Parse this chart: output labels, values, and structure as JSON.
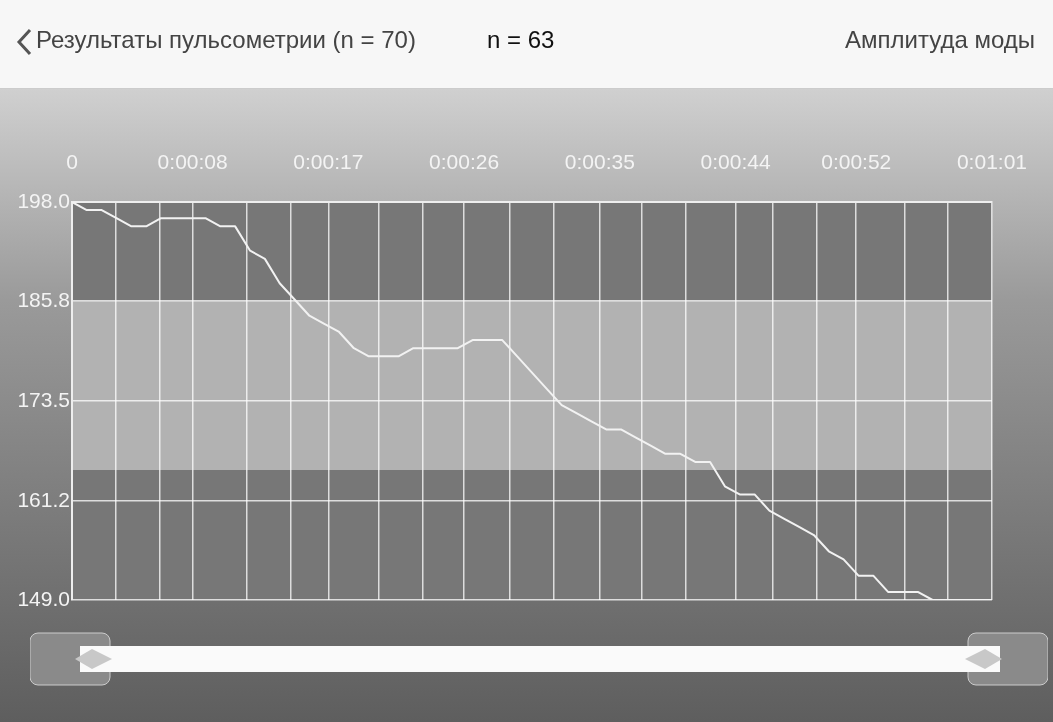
{
  "chart_data": {
    "type": "line",
    "title": "Результаты пульсометрии (n = 70)",
    "subtitle": "n = 63",
    "annotations": [
      "Амплитуда моды"
    ],
    "x": [
      0,
      0.98,
      1.97,
      2.95,
      3.94,
      4.92,
      5.9,
      6.89,
      7.87,
      8.85,
      9.84,
      10.82,
      11.81,
      12.79,
      13.77,
      14.76,
      15.74,
      16.73,
      17.71,
      18.69,
      19.68,
      20.66,
      21.65,
      22.63,
      23.61,
      24.6,
      25.58,
      26.56,
      27.55,
      28.53,
      29.52,
      30.5,
      31.48,
      32.47,
      33.45,
      34.44,
      35.42,
      36.4,
      37.39,
      38.37,
      39.35,
      40.34,
      41.32,
      42.31,
      43.29,
      44.27,
      45.26,
      46.24,
      47.23,
      48.21,
      49.19,
      50.18,
      51.16,
      52.15,
      53.13,
      54.11,
      55.1,
      56.08,
      57.06,
      58.05,
      59.03,
      60.02,
      61
    ],
    "series": [
      {
        "color": "#f2f2f2",
        "values": [
          198,
          197,
          197,
          196,
          195,
          195,
          196,
          196,
          196,
          196,
          195,
          195,
          192,
          191,
          188,
          186,
          184,
          183,
          182,
          180,
          179,
          179,
          179,
          180,
          180,
          180,
          180,
          181,
          181,
          181,
          179,
          177,
          175,
          173,
          172,
          171,
          170,
          170,
          169,
          168,
          167,
          167,
          166,
          166,
          163,
          162,
          162,
          160,
          159,
          158,
          157,
          155,
          154,
          152,
          152,
          150,
          150,
          150,
          149,
          149,
          149,
          149,
          149
        ]
      }
    ],
    "xlim": [
      0,
      61
    ],
    "xticks": [
      {
        "value": 0,
        "label": "0"
      },
      {
        "value": 2.9,
        "label": null
      },
      {
        "value": 5.81,
        "label": null
      },
      {
        "value": 8,
        "label": "0:00:08"
      },
      {
        "value": 11.62,
        "label": null
      },
      {
        "value": 14.52,
        "label": null
      },
      {
        "value": 17,
        "label": "0:00:17"
      },
      {
        "value": 20.33,
        "label": null
      },
      {
        "value": 23.24,
        "label": null
      },
      {
        "value": 26,
        "label": "0:00:26"
      },
      {
        "value": 29.05,
        "label": null
      },
      {
        "value": 31.95,
        "label": null
      },
      {
        "value": 35,
        "label": "0:00:35"
      },
      {
        "value": 37.76,
        "label": null
      },
      {
        "value": 40.67,
        "label": null
      },
      {
        "value": 44,
        "label": "0:00:44"
      },
      {
        "value": 46.48,
        "label": null
      },
      {
        "value": 49.38,
        "label": null
      },
      {
        "value": 52,
        "label": "0:00:52"
      },
      {
        "value": 55.19,
        "label": null
      },
      {
        "value": 58.1,
        "label": null
      },
      {
        "value": 61,
        "label": "0:01:01"
      }
    ],
    "ylim": [
      149,
      198
    ],
    "yticks": [
      {
        "value": 149,
        "label": "149.0"
      },
      {
        "value": 161.2,
        "label": "161.2"
      },
      {
        "value": 173.5,
        "label": "173.5"
      },
      {
        "value": 185.8,
        "label": "185.8"
      },
      {
        "value": 198,
        "label": "198.0"
      }
    ],
    "bands": [
      {
        "axis": "y",
        "from": 165,
        "to": 185.8,
        "color": "#b2b2b2"
      }
    ],
    "grid": true,
    "legend": false,
    "marker": "none",
    "line_style": "solid"
  }
}
